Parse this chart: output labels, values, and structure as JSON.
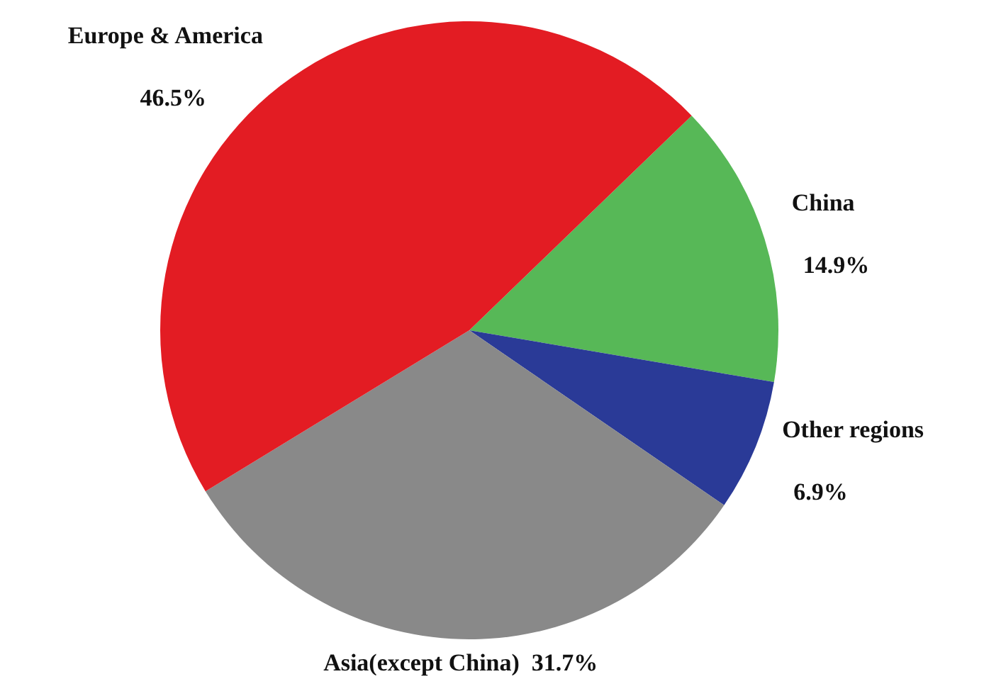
{
  "chart_data": {
    "type": "pie",
    "categories": [
      "China",
      "Other regions",
      "Asia(except China)",
      "Europe & America"
    ],
    "values": [
      14.9,
      6.9,
      31.7,
      46.5
    ],
    "colors": [
      "#57b857",
      "#2a3a97",
      "#898989",
      "#e31c23"
    ],
    "value_labels": [
      "14.9%",
      "6.9%",
      "31.7%",
      "46.5%"
    ]
  }
}
